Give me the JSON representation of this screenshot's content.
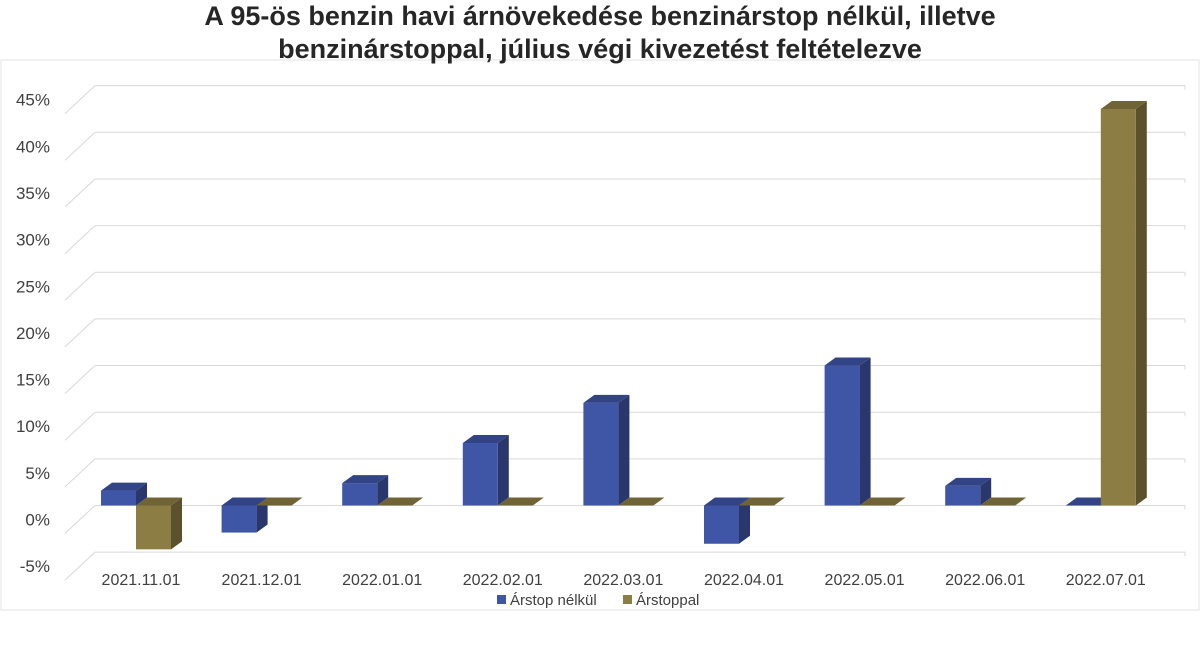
{
  "chart_data": {
    "type": "bar",
    "title_lines": [
      "A 95-ös benzin havi árnövekedése benzinárstop nélkül, illetve",
      "benzinárstoppal, július végi kivezetést feltételezve"
    ],
    "categories": [
      "2021.11.01",
      "2021.12.01",
      "2022.01.01",
      "2022.02.01",
      "2022.03.01",
      "2022.04.01",
      "2022.05.01",
      "2022.06.01",
      "2022.07.01"
    ],
    "series": [
      {
        "name": "Árstop nélkül",
        "color": "#3F55A6",
        "values": [
          1.6,
          -2.9,
          2.4,
          6.7,
          11.0,
          -4.1,
          15.0,
          2.1,
          0.0
        ]
      },
      {
        "name": "Árstoppal",
        "color": "#8C7D45",
        "values": [
          -4.7,
          0.0,
          0.0,
          0.0,
          0.0,
          0.0,
          0.0,
          0.0,
          42.5
        ]
      }
    ],
    "yticks": [
      "-5%",
      "0%",
      "5%",
      "10%",
      "15%",
      "20%",
      "25%",
      "30%",
      "35%",
      "40%",
      "45%"
    ],
    "ylim": [
      -5,
      45
    ],
    "grid": true,
    "legend_position": "bottom"
  }
}
